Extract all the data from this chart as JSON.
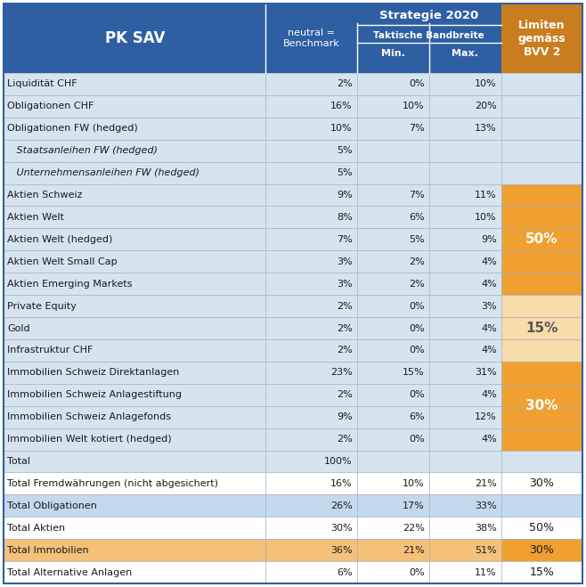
{
  "header_col1": "PK SAV",
  "header_col2": "neutral =\nBenchmark",
  "header_group": "Strategie 2020",
  "header_taktische": "Taktische Bandbreite",
  "header_min": "Min.",
  "header_max": "Max.",
  "header_limiten": "Limiten\ngemäss\nBVV 2",
  "rows": [
    {
      "label": "Liquidität CHF",
      "neutral": "2%",
      "min": "0%",
      "max": "10%",
      "limiten": "",
      "italic": false,
      "bold": false,
      "row_bg": "light"
    },
    {
      "label": "Obligationen CHF",
      "neutral": "16%",
      "min": "10%",
      "max": "20%",
      "limiten": "",
      "italic": false,
      "bold": false,
      "row_bg": "light"
    },
    {
      "label": "Obligationen FW (hedged)",
      "neutral": "10%",
      "min": "7%",
      "max": "13%",
      "limiten": "",
      "italic": false,
      "bold": false,
      "row_bg": "light"
    },
    {
      "label": "   Staatsanleihen FW (hedged)",
      "neutral": "5%",
      "min": "",
      "max": "",
      "limiten": "",
      "italic": true,
      "bold": false,
      "row_bg": "light"
    },
    {
      "label": "   Unternehmensanleihen FW (hedged)",
      "neutral": "5%",
      "min": "",
      "max": "",
      "limiten": "",
      "italic": true,
      "bold": false,
      "row_bg": "light"
    },
    {
      "label": "Aktien Schweiz",
      "neutral": "9%",
      "min": "7%",
      "max": "11%",
      "limiten": "",
      "italic": false,
      "bold": false,
      "row_bg": "light"
    },
    {
      "label": "Aktien Welt",
      "neutral": "8%",
      "min": "6%",
      "max": "10%",
      "limiten": "",
      "italic": false,
      "bold": false,
      "row_bg": "light"
    },
    {
      "label": "Aktien Welt (hedged)",
      "neutral": "7%",
      "min": "5%",
      "max": "9%",
      "limiten": "",
      "italic": false,
      "bold": false,
      "row_bg": "light"
    },
    {
      "label": "Aktien Welt Small Cap",
      "neutral": "3%",
      "min": "2%",
      "max": "4%",
      "limiten": "",
      "italic": false,
      "bold": false,
      "row_bg": "light"
    },
    {
      "label": "Aktien Emerging Markets",
      "neutral": "3%",
      "min": "2%",
      "max": "4%",
      "limiten": "",
      "italic": false,
      "bold": false,
      "row_bg": "light"
    },
    {
      "label": "Private Equity",
      "neutral": "2%",
      "min": "0%",
      "max": "3%",
      "limiten": "",
      "italic": false,
      "bold": false,
      "row_bg": "light"
    },
    {
      "label": "Gold",
      "neutral": "2%",
      "min": "0%",
      "max": "4%",
      "limiten": "",
      "italic": false,
      "bold": false,
      "row_bg": "light"
    },
    {
      "label": "Infrastruktur CHF",
      "neutral": "2%",
      "min": "0%",
      "max": "4%",
      "limiten": "",
      "italic": false,
      "bold": false,
      "row_bg": "light"
    },
    {
      "label": "Immobilien Schweiz Direktanlagen",
      "neutral": "23%",
      "min": "15%",
      "max": "31%",
      "limiten": "",
      "italic": false,
      "bold": false,
      "row_bg": "light"
    },
    {
      "label": "Immobilien Schweiz Anlagestiftung",
      "neutral": "2%",
      "min": "0%",
      "max": "4%",
      "limiten": "",
      "italic": false,
      "bold": false,
      "row_bg": "light"
    },
    {
      "label": "Immobilien Schweiz Anlagefonds",
      "neutral": "9%",
      "min": "6%",
      "max": "12%",
      "limiten": "",
      "italic": false,
      "bold": false,
      "row_bg": "light"
    },
    {
      "label": "Immobilien Welt kotiert (hedged)",
      "neutral": "2%",
      "min": "0%",
      "max": "4%",
      "limiten": "",
      "italic": false,
      "bold": false,
      "row_bg": "light"
    },
    {
      "label": "Total",
      "neutral": "100%",
      "min": "",
      "max": "",
      "limiten": "",
      "italic": false,
      "bold": false,
      "row_bg": "light"
    },
    {
      "label": "Total Fremdwährungen (nicht abgesichert)",
      "neutral": "16%",
      "min": "10%",
      "max": "21%",
      "limiten": "30%",
      "italic": false,
      "bold": false,
      "row_bg": "white"
    },
    {
      "label": "Total Obligationen",
      "neutral": "26%",
      "min": "17%",
      "max": "33%",
      "limiten": "",
      "italic": false,
      "bold": false,
      "row_bg": "blue_bold"
    },
    {
      "label": "Total Aktien",
      "neutral": "30%",
      "min": "22%",
      "max": "38%",
      "limiten": "50%",
      "italic": false,
      "bold": false,
      "row_bg": "white"
    },
    {
      "label": "Total Immobilien",
      "neutral": "36%",
      "min": "21%",
      "max": "51%",
      "limiten": "30%",
      "italic": false,
      "bold": false,
      "row_bg": "orange_bold"
    },
    {
      "label": "Total Alternative Anlagen",
      "neutral": "6%",
      "min": "0%",
      "max": "11%",
      "limiten": "15%",
      "italic": false,
      "bold": false,
      "row_bg": "white"
    }
  ],
  "colors": {
    "header_blue_dark": "#2E5FA3",
    "header_orange": "#C87D1E",
    "row_light_blue": "#D6E4F0",
    "row_alt_blue": "#BFD5E8",
    "row_white": "#FFFFFF",
    "row_blue_bold": "#C5D9EE",
    "row_orange_bold": "#F5C07A",
    "limiten_orange_dark": "#F0A030",
    "limiten_orange_light": "#F8DCAB",
    "text_dark": "#1a1a1a",
    "text_white": "#FFFFFF",
    "border": "#A0AABB",
    "border_blue": "#2E5FA3"
  },
  "limiten_spans": [
    {
      "rows": [
        5,
        6,
        7,
        8,
        9
      ],
      "value": "50%",
      "color": "#F0A030",
      "text_color": "#FFFFFF"
    },
    {
      "rows": [
        10,
        11,
        12
      ],
      "value": "15%",
      "color": "#F8DCAB",
      "text_color": "#555555"
    },
    {
      "rows": [
        13,
        14,
        15,
        16
      ],
      "value": "30%",
      "color": "#F0A030",
      "text_color": "#FFFFFF"
    }
  ]
}
